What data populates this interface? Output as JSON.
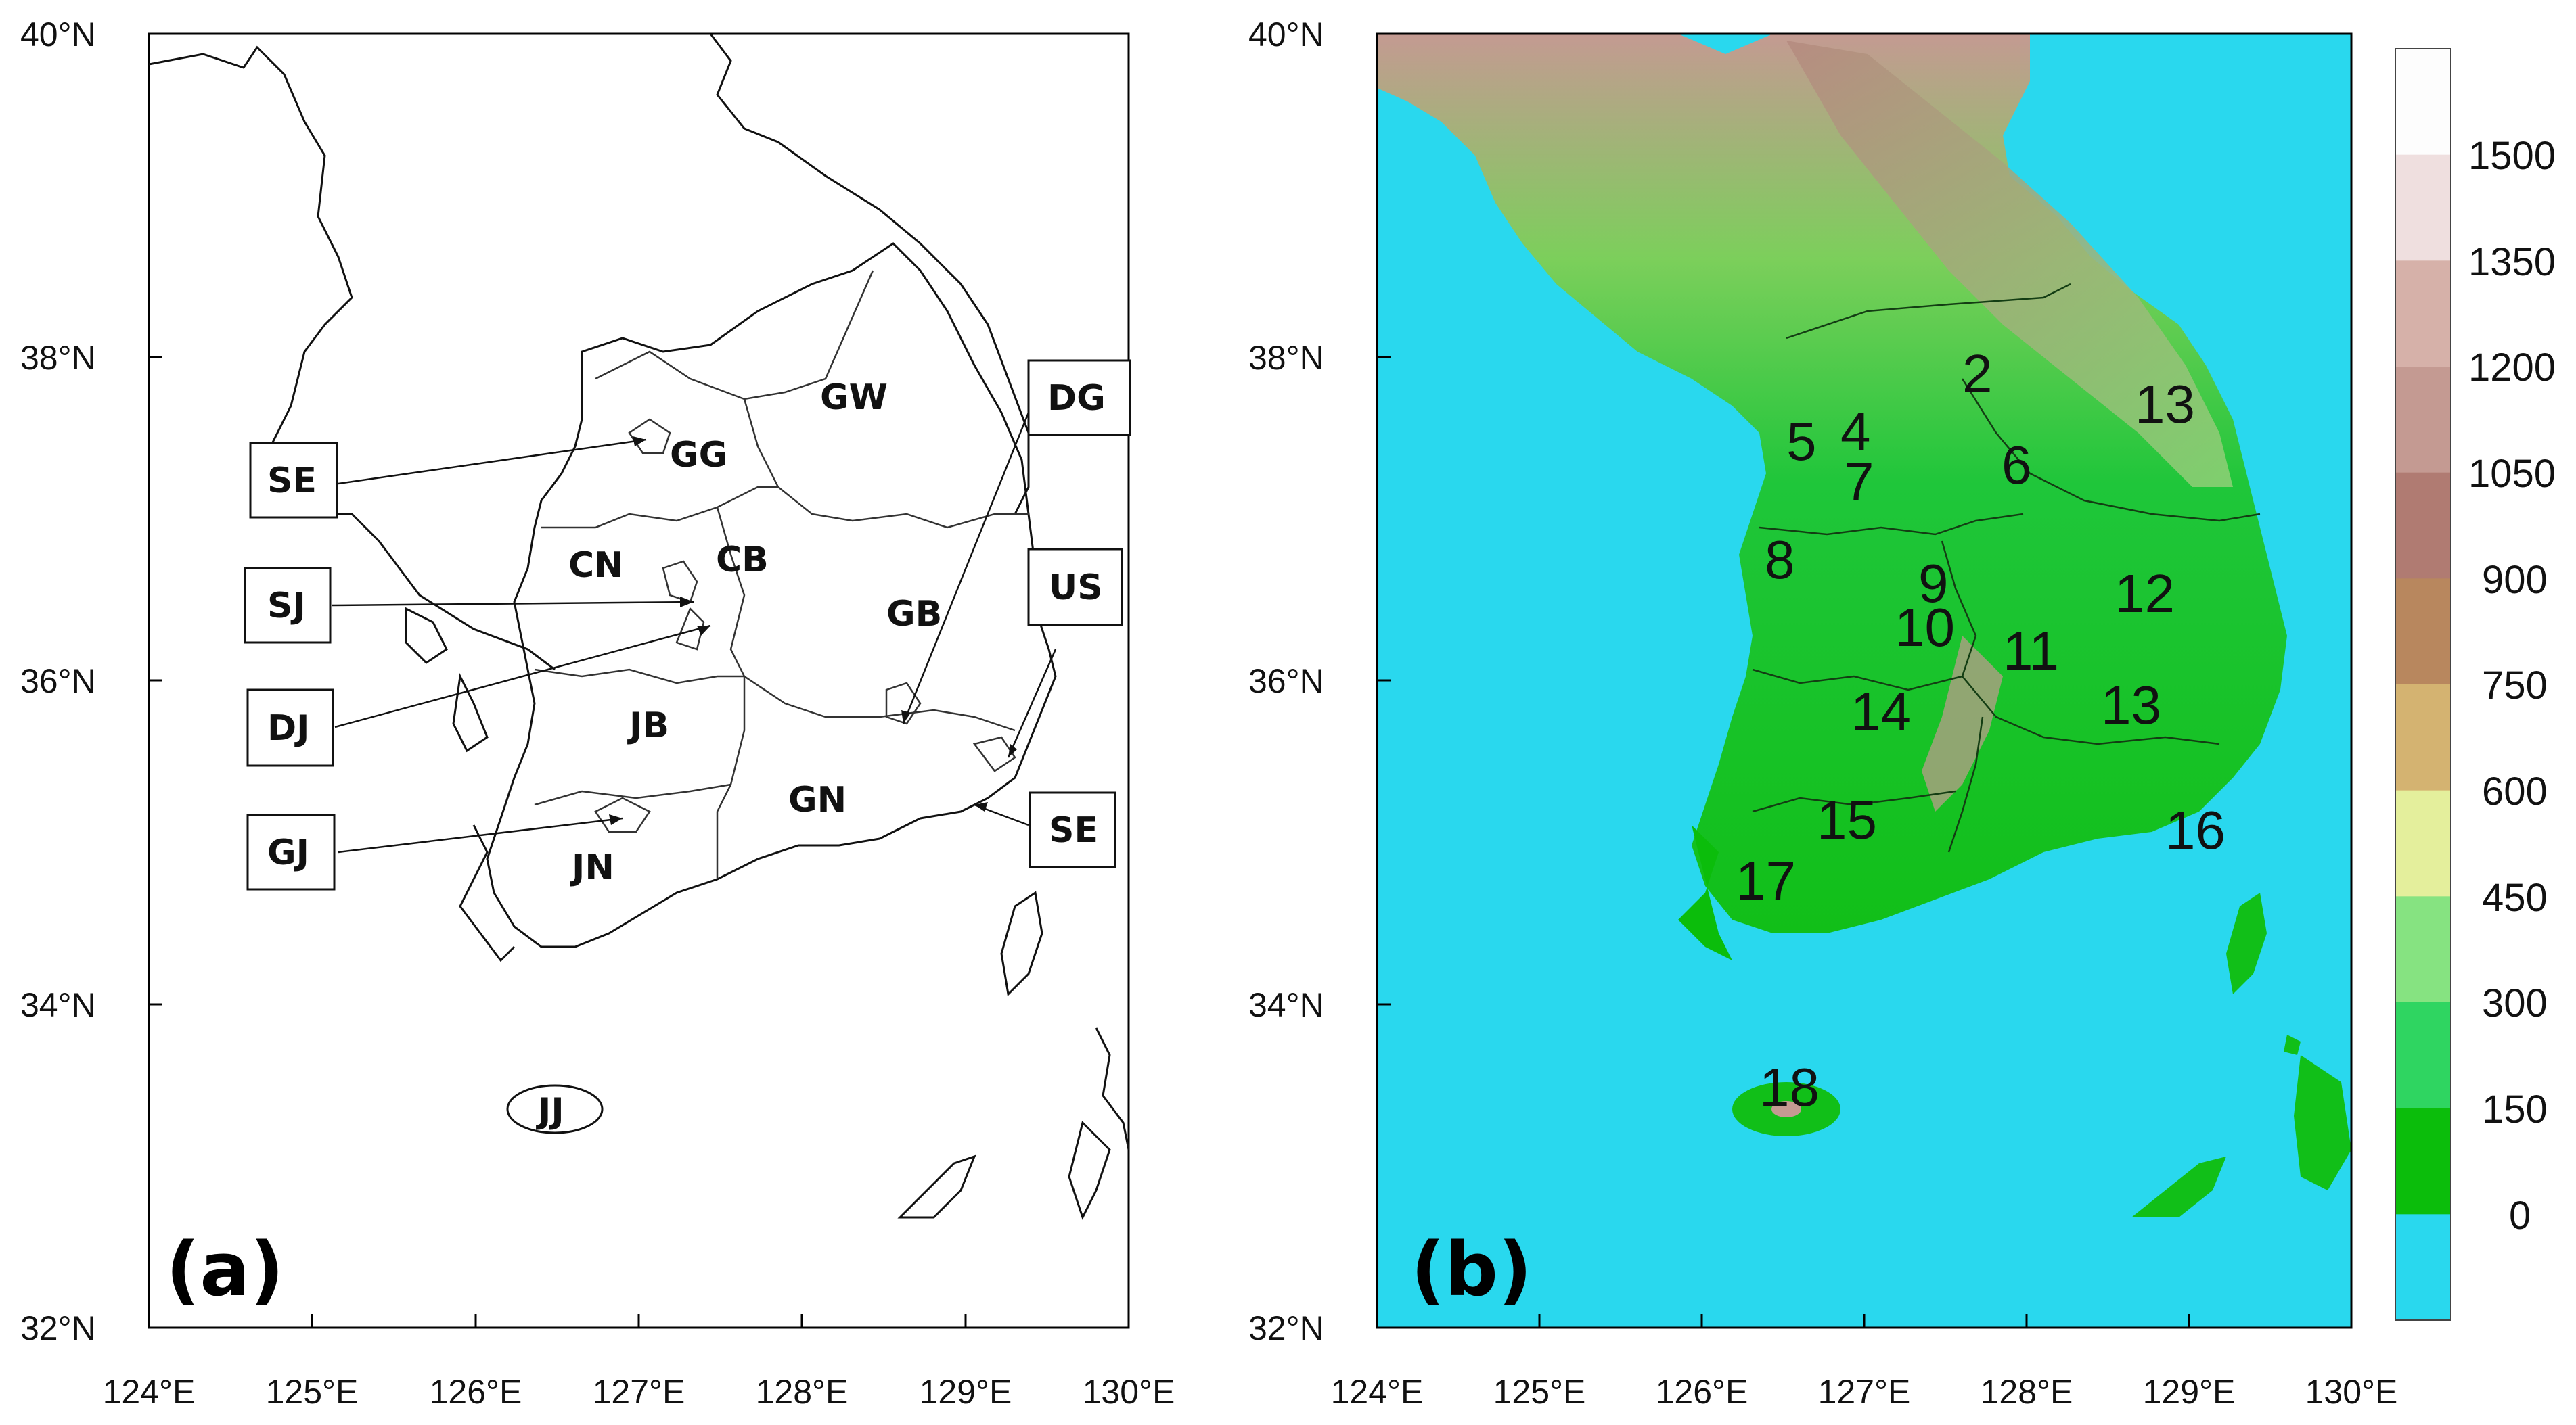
{
  "panel_a": {
    "label": "(a)",
    "lat_ticks": [
      "40°N",
      "38°N",
      "36°N",
      "34°N",
      "32°N"
    ],
    "lon_ticks": [
      "124°E",
      "125°E",
      "126°E",
      "127°E",
      "128°E",
      "129°E",
      "130°E"
    ],
    "regions": [
      "GW",
      "GG",
      "CN",
      "CB",
      "GB",
      "JB",
      "GN",
      "JN",
      "JJ"
    ],
    "callouts": [
      "SE",
      "SJ",
      "DJ",
      "GJ",
      "DG",
      "US",
      "SE"
    ]
  },
  "panel_b": {
    "label": "(b)",
    "lat_ticks": [
      "40°N",
      "38°N",
      "36°N",
      "34°N",
      "32°N"
    ],
    "lon_ticks": [
      "124°E",
      "125°E",
      "126°E",
      "127°E",
      "128°E",
      "129°E",
      "130°E"
    ],
    "region_numbers": [
      "2",
      "13",
      "5",
      "4",
      "6",
      "7",
      "8",
      "9",
      "12",
      "10",
      "11",
      "14",
      "13",
      "15",
      "16",
      "17",
      "18"
    ],
    "colorbar": {
      "labels": [
        "1500",
        "1350",
        "1200",
        "1050",
        "900",
        "750",
        "600",
        "450",
        "300",
        "150",
        "0"
      ],
      "colors": [
        "#fdfdfd",
        "#efdfdf",
        "#d6b1a9",
        "#c49a92",
        "#b07b72",
        "#b8875e",
        "#d4b371",
        "#e4ef9c",
        "#86e381",
        "#2fd561",
        "#0bbd0b",
        "#29d8ee"
      ]
    },
    "ocean_color": "#29d8ee"
  }
}
